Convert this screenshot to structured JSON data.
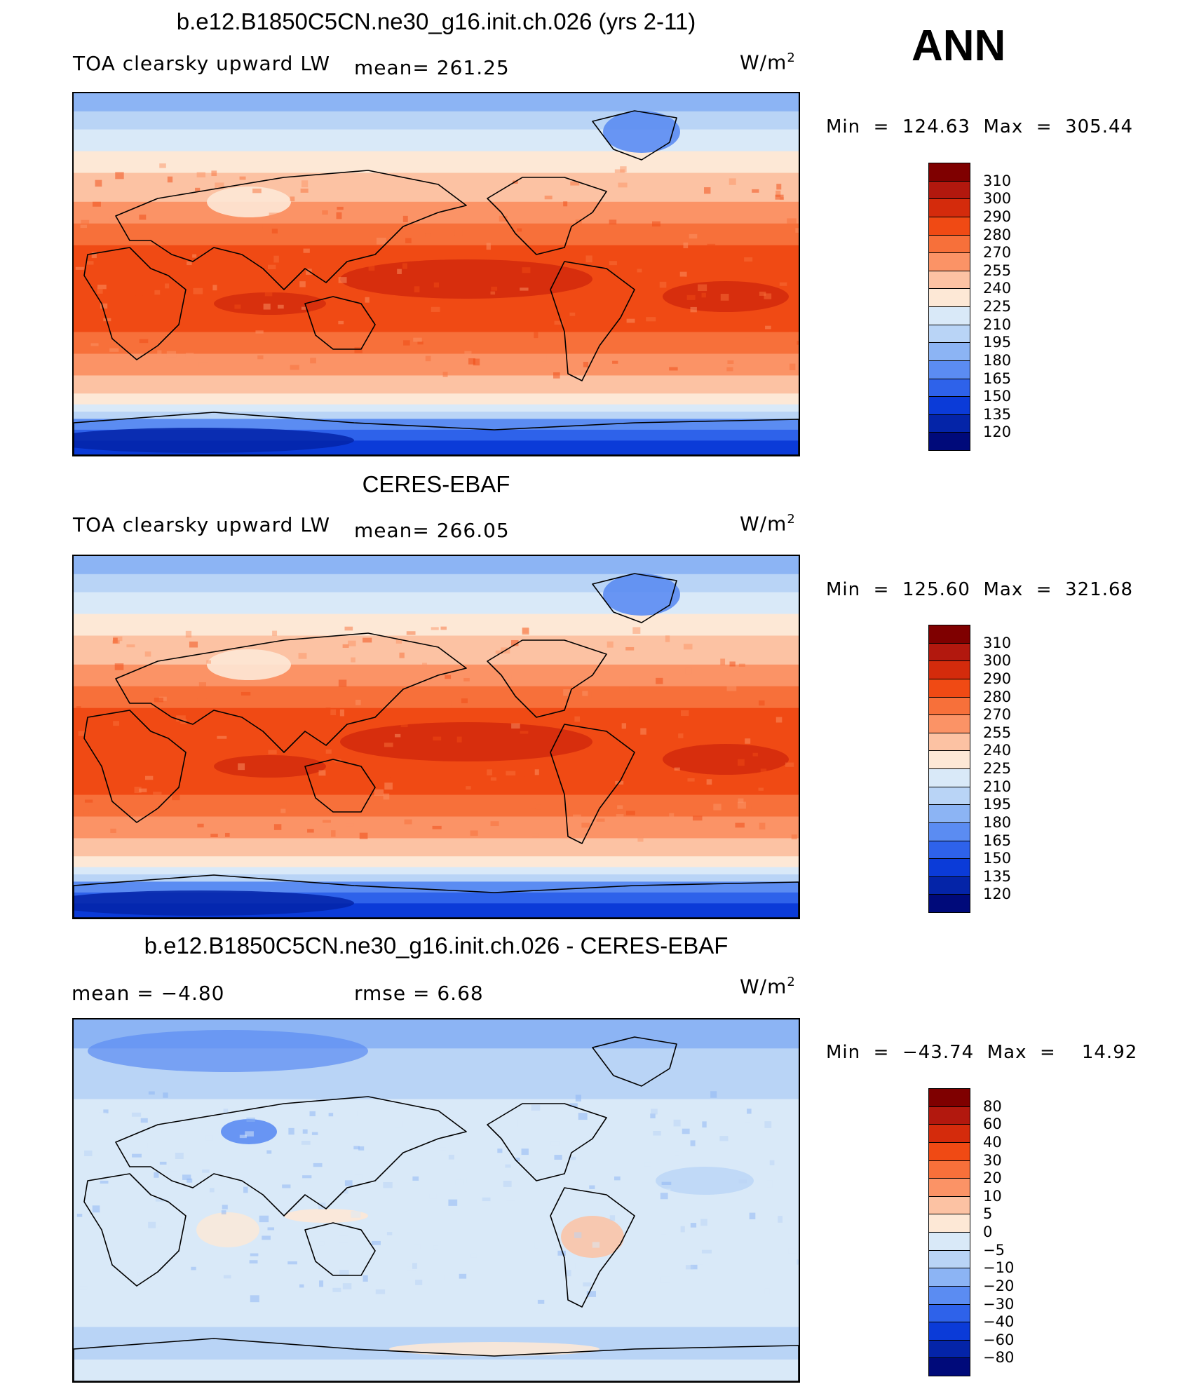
{
  "season_label": "ANN",
  "panels": [
    {
      "title": "b.e12.B1850C5CN.ne30_g16.init.ch.026 (yrs 2-11)",
      "left_label": "TOA clearsky upward LW",
      "center_label": "mean=  261.25",
      "units_base": "W/m",
      "units_sup": "2",
      "minmax": "Min  =  124.63  Max  =  305.44",
      "map_kind": "model",
      "colorbar": {
        "labels": [
          "310",
          "300",
          "290",
          "280",
          "270",
          "255",
          "240",
          "225",
          "210",
          "195",
          "180",
          "165",
          "150",
          "135",
          "120"
        ],
        "colors": [
          "#7f0000",
          "#b2180e",
          "#d42b0c",
          "#f04a14",
          "#f7703a",
          "#fb9366",
          "#fcc2a3",
          "#fde8d6",
          "#d9e9f8",
          "#b9d4f6",
          "#8cb4f4",
          "#5b8cf2",
          "#2e62ea",
          "#0b3bd8",
          "#0424a8",
          "#000a7a"
        ]
      }
    },
    {
      "title": "CERES-EBAF",
      "left_label": "TOA clearsky upward LW",
      "center_label": "mean=  266.05",
      "units_base": "W/m",
      "units_sup": "2",
      "minmax": "Min  =  125.60  Max  =  321.68",
      "map_kind": "obs",
      "colorbar": {
        "labels": [
          "310",
          "300",
          "290",
          "280",
          "270",
          "255",
          "240",
          "225",
          "210",
          "195",
          "180",
          "165",
          "150",
          "135",
          "120"
        ],
        "colors": [
          "#7f0000",
          "#b2180e",
          "#d42b0c",
          "#f04a14",
          "#f7703a",
          "#fb9366",
          "#fcc2a3",
          "#fde8d6",
          "#d9e9f8",
          "#b9d4f6",
          "#8cb4f4",
          "#5b8cf2",
          "#2e62ea",
          "#0b3bd8",
          "#0424a8",
          "#000a7a"
        ]
      }
    },
    {
      "title": "b.e12.B1850C5CN.ne30_g16.init.ch.026 - CERES-EBAF",
      "left_label": "mean  =    −4.80",
      "center_label": "rmse  =     6.68",
      "units_base": "W/m",
      "units_sup": "2",
      "minmax": "Min  =  −43.74  Max  =    14.92",
      "map_kind": "diff",
      "colorbar": {
        "labels": [
          "80",
          "60",
          "40",
          "30",
          "20",
          "10",
          "5",
          "0",
          "−5",
          "−10",
          "−20",
          "−30",
          "−40",
          "−60",
          "−80"
        ],
        "colors": [
          "#7f0000",
          "#b2180e",
          "#d42b0c",
          "#f04a14",
          "#f7703a",
          "#fb9366",
          "#fcc2a3",
          "#fde8d6",
          "#d9e9f8",
          "#b9d4f6",
          "#8cb4f4",
          "#5b8cf2",
          "#2e62ea",
          "#0b3bd8",
          "#0424a8",
          "#000a7a"
        ]
      }
    }
  ]
}
